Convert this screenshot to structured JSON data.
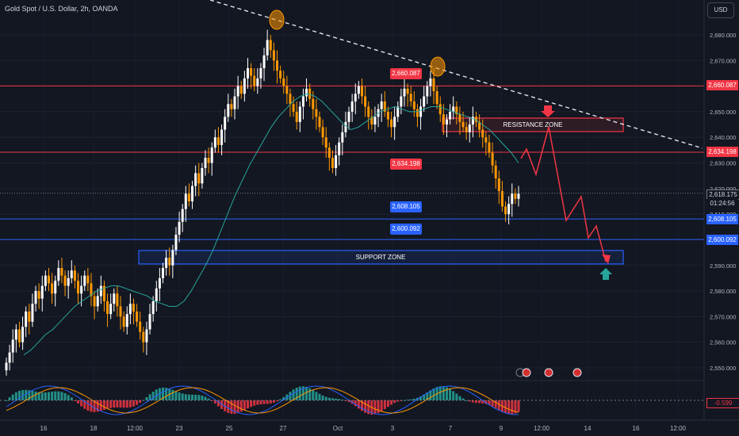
{
  "header": {
    "title": "Gold Spot / U.S. Dollar, 2h, OANDA",
    "currency_button": "USD"
  },
  "chart_data": {
    "type": "candlestick",
    "price_axis": {
      "ticks": [
        2680,
        2670,
        2660,
        2650,
        2640,
        2630,
        2620,
        2610,
        2600,
        2590,
        2580,
        2570,
        2560,
        2550
      ],
      "tick_labels": [
        "2,680.000",
        "2,670.000",
        "2,660.000",
        "2,650.000",
        "2,640.000",
        "2,630.000",
        "2,620.000",
        "2,610.000",
        "2,600.000",
        "2,590.000",
        "2,580.000",
        "2,570.000",
        "2,560.000",
        "2,550.000"
      ]
    },
    "time_axis": {
      "labels": [
        "16",
        "18",
        "12:00",
        "23",
        "25",
        "27",
        "Oct",
        "3",
        "7",
        "9",
        "12:00",
        "14",
        "16",
        "12:00"
      ]
    },
    "last_price": {
      "value": "2,618.175",
      "countdown": "01:24:56"
    },
    "horizontal_levels": [
      {
        "price": 2660.087,
        "label": "2,660.087",
        "color": "#f23645"
      },
      {
        "price": 2634.198,
        "label": "2,634.198",
        "color": "#f23645"
      },
      {
        "price": 2608.105,
        "label": "2,608.105",
        "color": "#2962ff"
      },
      {
        "price": 2600.092,
        "label": "2,600.092",
        "color": "#2962ff"
      }
    ],
    "zones": [
      {
        "label": "RESISTANCE ZONE",
        "color": "#f23645"
      },
      {
        "label": "SUPPORT ZONE",
        "color": "#2962ff"
      }
    ],
    "candles_close": [
      2552,
      2556,
      2561,
      2565,
      2560,
      2566,
      2572,
      2568,
      2575,
      2580,
      2577,
      2582,
      2586,
      2583,
      2579,
      2584,
      2589,
      2586,
      2582,
      2585,
      2588,
      2584,
      2579,
      2582,
      2586,
      2583,
      2578,
      2574,
      2578,
      2582,
      2576,
      2571,
      2575,
      2579,
      2574,
      2570,
      2566,
      2571,
      2575,
      2572,
      2568,
      2564,
      2560,
      2565,
      2571,
      2576,
      2581,
      2585,
      2589,
      2593,
      2590,
      2596,
      2602,
      2607,
      2612,
      2618,
      2615,
      2621,
      2626,
      2622,
      2628,
      2632,
      2630,
      2636,
      2640,
      2637,
      2643,
      2648,
      2653,
      2651,
      2656,
      2660,
      2657,
      2663,
      2667,
      2664,
      2660,
      2663,
      2667,
      2672,
      2678,
      2674,
      2670,
      2666,
      2663,
      2660,
      2657,
      2653,
      2650,
      2646,
      2652,
      2656,
      2659,
      2655,
      2651,
      2648,
      2644,
      2640,
      2636,
      2632,
      2628,
      2633,
      2638,
      2642,
      2646,
      2650,
      2654,
      2657,
      2660,
      2656,
      2652,
      2648,
      2645,
      2648,
      2651,
      2654,
      2650,
      2647,
      2644,
      2648,
      2652,
      2656,
      2659,
      2657,
      2654,
      2651,
      2648,
      2652,
      2656,
      2660,
      2663,
      2658,
      2653,
      2649,
      2645,
      2647,
      2650,
      2652,
      2649,
      2646,
      2644,
      2642,
      2645,
      2648,
      2646,
      2643,
      2640,
      2638,
      2634,
      2629,
      2624,
      2619,
      2613,
      2610,
      2614,
      2618,
      2616,
      2618
    ],
    "moving_average": [
      2555,
      2557,
      2560,
      2563,
      2565,
      2568,
      2571,
      2574,
      2576,
      2578,
      2580,
      2581,
      2582,
      2582,
      2581,
      2580,
      2579,
      2578,
      2576,
      2575,
      2574,
      2574,
      2576,
      2580,
      2585,
      2590,
      2596,
      2603,
      2610,
      2617,
      2623,
      2629,
      2634,
      2639,
      2644,
      2648,
      2651,
      2654,
      2656,
      2657,
      2656,
      2654,
      2651,
      2648,
      2645,
      2643,
      2644,
      2646,
      2648,
      2650,
      2651,
      2652,
      2651,
      2650,
      2650,
      2651,
      2652,
      2652,
      2651,
      2650,
      2649,
      2648,
      2647,
      2645,
      2643,
      2640,
      2637,
      2634,
      2630
    ],
    "projection": [
      [
        2642,
        0
      ],
      [
        2642,
        0
      ]
    ],
    "oscillator": {
      "value": "-0.599",
      "zero_label": "0.000"
    }
  }
}
